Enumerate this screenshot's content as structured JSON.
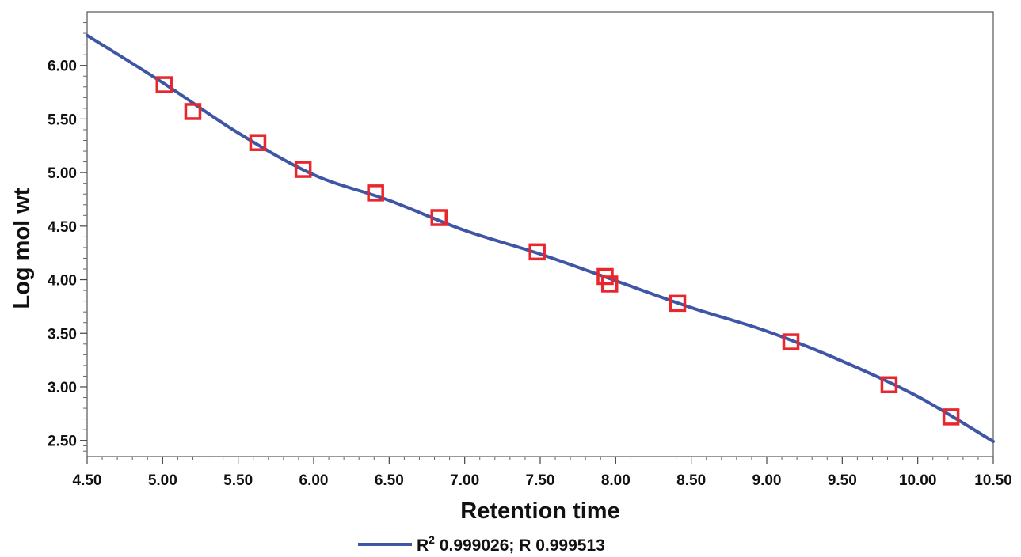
{
  "chart_data": {
    "type": "scatter",
    "xlabel": "Retention time",
    "ylabel": "Log mol wt",
    "xlim": [
      4.5,
      10.5
    ],
    "ylim": [
      2.35,
      6.5
    ],
    "x_ticks": [
      4.5,
      5.0,
      5.5,
      6.0,
      6.5,
      7.0,
      7.5,
      8.0,
      8.5,
      9.0,
      9.5,
      10.0,
      10.5
    ],
    "x_tick_labels": [
      "4.50",
      "5.00",
      "5.50",
      "6.00",
      "6.50",
      "7.00",
      "7.50",
      "8.00",
      "8.50",
      "9.00",
      "9.50",
      "10.00",
      "10.50"
    ],
    "y_ticks": [
      2.5,
      3.0,
      3.5,
      4.0,
      4.5,
      5.0,
      5.5,
      6.0
    ],
    "y_tick_labels": [
      "2.50",
      "3.00",
      "3.50",
      "4.00",
      "4.50",
      "5.00",
      "5.50",
      "6.00"
    ],
    "grid": false,
    "legend_position": "bottom-center",
    "points": {
      "marker": "open-square",
      "color": "#e8262c",
      "x": [
        5.01,
        5.2,
        5.63,
        5.93,
        6.41,
        6.83,
        7.48,
        7.93,
        7.96,
        8.41,
        9.16,
        9.81,
        10.22
      ],
      "y": [
        5.82,
        5.57,
        5.28,
        5.03,
        4.81,
        4.58,
        4.26,
        4.03,
        3.96,
        3.78,
        3.42,
        3.02,
        2.72
      ]
    },
    "fit_curve": {
      "color": "#3f56a6",
      "x": [
        4.5,
        5.0,
        5.5,
        6.0,
        6.5,
        7.0,
        7.5,
        8.0,
        8.5,
        9.0,
        9.5,
        10.0,
        10.5
      ],
      "y": [
        6.28,
        5.84,
        5.37,
        4.98,
        4.74,
        4.46,
        4.24,
        3.99,
        3.74,
        3.52,
        3.24,
        2.91,
        2.49
      ]
    },
    "legend": {
      "label_main": "R",
      "label_sup": "2",
      "label_rest": " 0.999026; R 0.999513",
      "color": "#3f56a6"
    }
  }
}
